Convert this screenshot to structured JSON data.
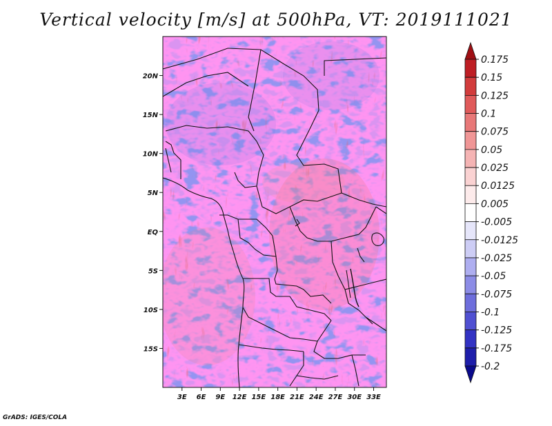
{
  "title": "Vertical velocity [m/s] at 500hPa, VT: 2019111021",
  "credit": "GrADS: IGES/COLA",
  "map": {
    "variable": "Vertical velocity",
    "units": "m/s",
    "level": "500hPa",
    "valid_time": "2019111021",
    "lon_range": [
      0,
      35
    ],
    "lat_range": [
      -20,
      25
    ],
    "x_ticks": [
      {
        "value": 3,
        "label": "3E"
      },
      {
        "value": 6,
        "label": "6E"
      },
      {
        "value": 9,
        "label": "9E"
      },
      {
        "value": 12,
        "label": "12E"
      },
      {
        "value": 15,
        "label": "15E"
      },
      {
        "value": 18,
        "label": "18E"
      },
      {
        "value": 21,
        "label": "21E"
      },
      {
        "value": 24,
        "label": "24E"
      },
      {
        "value": 27,
        "label": "27E"
      },
      {
        "value": 30,
        "label": "30E"
      },
      {
        "value": 33,
        "label": "33E"
      }
    ],
    "y_ticks": [
      {
        "value": 20,
        "label": "20N"
      },
      {
        "value": 15,
        "label": "15N"
      },
      {
        "value": 10,
        "label": "10N"
      },
      {
        "value": 5,
        "label": "5N"
      },
      {
        "value": 0,
        "label": "EQ"
      },
      {
        "value": -5,
        "label": "5S"
      },
      {
        "value": -10,
        "label": "10S"
      },
      {
        "value": -15,
        "label": "15S"
      }
    ]
  },
  "colorbar": {
    "labels": [
      "0.175",
      "0.15",
      "0.125",
      "0.1",
      "0.075",
      "0.05",
      "0.025",
      "0.0125",
      "0.005",
      "-0.005",
      "-0.0125",
      "-0.025",
      "-0.05",
      "-0.075",
      "-0.1",
      "-0.125",
      "-0.175",
      "-0.2"
    ],
    "colors": [
      "#a00f14",
      "#be1e24",
      "#d23c3c",
      "#e05a5a",
      "#e87878",
      "#f09696",
      "#f5b4b4",
      "#fad2d2",
      "#fdebeb",
      "#ffffff",
      "#e6e6fa",
      "#cdcdf5",
      "#aeaef0",
      "#8c8ce6",
      "#6e6edc",
      "#5050d2",
      "#3232c3",
      "#1e1eaa",
      "#0a0a8c"
    ]
  }
}
